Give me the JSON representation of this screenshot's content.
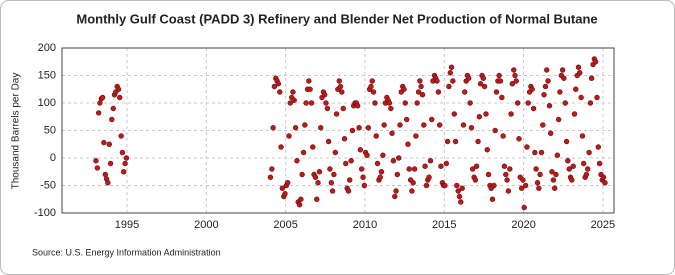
{
  "chart_data": {
    "type": "scatter",
    "title": "Monthly Gulf Coast (PADD 3) Refinery and Blender Net Production of Normal Butane",
    "y_label": "Thousand Barrels per Day",
    "source": "Source: U.S. Energy Information Administration",
    "color": "#b81c1c",
    "grid": true,
    "xlim": [
      1990.9,
      2025.7
    ],
    "xticks": [
      1995,
      2000,
      2005,
      2010,
      2015,
      2020,
      2025
    ],
    "ylim": [
      -100,
      200
    ],
    "yticks": [
      -100,
      -50,
      0,
      50,
      100,
      150,
      200
    ],
    "x": [
      1993.04,
      1993.13,
      1993.21,
      1993.29,
      1993.38,
      1993.46,
      1993.54,
      1993.63,
      1993.71,
      1993.79,
      1993.88,
      1993.96,
      1994.04,
      1994.13,
      1994.21,
      1994.29,
      1994.38,
      1994.46,
      1994.54,
      1994.63,
      1994.71,
      1994.79,
      1994.88,
      1994.96,
      2004.04,
      2004.13,
      2004.21,
      2004.29,
      2004.38,
      2004.46,
      2004.54,
      2004.63,
      2004.71,
      2004.79,
      2004.88,
      2004.96,
      2005.04,
      2005.13,
      2005.21,
      2005.29,
      2005.38,
      2005.46,
      2005.54,
      2005.63,
      2005.71,
      2005.79,
      2005.88,
      2005.96,
      2006.04,
      2006.13,
      2006.21,
      2006.29,
      2006.38,
      2006.46,
      2006.54,
      2006.63,
      2006.71,
      2006.79,
      2006.88,
      2006.96,
      2007.04,
      2007.13,
      2007.21,
      2007.29,
      2007.38,
      2007.46,
      2007.54,
      2007.63,
      2007.71,
      2007.79,
      2007.88,
      2007.96,
      2008.04,
      2008.13,
      2008.21,
      2008.29,
      2008.38,
      2008.46,
      2008.54,
      2008.63,
      2008.71,
      2008.79,
      2008.88,
      2008.96,
      2009.04,
      2009.13,
      2009.21,
      2009.29,
      2009.38,
      2009.46,
      2009.54,
      2009.63,
      2009.71,
      2009.79,
      2009.88,
      2009.96,
      2010.04,
      2010.13,
      2010.21,
      2010.29,
      2010.38,
      2010.46,
      2010.54,
      2010.63,
      2010.71,
      2010.79,
      2010.88,
      2010.96,
      2011.04,
      2011.13,
      2011.21,
      2011.29,
      2011.38,
      2011.46,
      2011.54,
      2011.63,
      2011.71,
      2011.79,
      2011.88,
      2011.96,
      2012.04,
      2012.13,
      2012.21,
      2012.29,
      2012.38,
      2012.46,
      2012.54,
      2012.63,
      2012.71,
      2012.79,
      2012.88,
      2012.96,
      2013.04,
      2013.13,
      2013.21,
      2013.29,
      2013.38,
      2013.46,
      2013.54,
      2013.63,
      2013.71,
      2013.79,
      2013.88,
      2013.96,
      2014.04,
      2014.13,
      2014.21,
      2014.29,
      2014.38,
      2014.46,
      2014.54,
      2014.63,
      2014.71,
      2014.79,
      2014.88,
      2014.96,
      2015.04,
      2015.13,
      2015.21,
      2015.29,
      2015.38,
      2015.46,
      2015.54,
      2015.63,
      2015.71,
      2015.79,
      2015.88,
      2015.96,
      2016.04,
      2016.13,
      2016.21,
      2016.29,
      2016.38,
      2016.46,
      2016.54,
      2016.63,
      2016.71,
      2016.79,
      2016.88,
      2016.96,
      2017.04,
      2017.13,
      2017.21,
      2017.29,
      2017.38,
      2017.46,
      2017.54,
      2017.63,
      2017.71,
      2017.79,
      2017.88,
      2017.96,
      2018.04,
      2018.13,
      2018.21,
      2018.29,
      2018.38,
      2018.46,
      2018.54,
      2018.63,
      2018.71,
      2018.79,
      2018.88,
      2018.96,
      2019.04,
      2019.13,
      2019.21,
      2019.29,
      2019.38,
      2019.46,
      2019.54,
      2019.63,
      2019.71,
      2019.79,
      2019.88,
      2019.96,
      2020.04,
      2020.13,
      2020.21,
      2020.29,
      2020.38,
      2020.46,
      2020.54,
      2020.63,
      2020.71,
      2020.79,
      2020.88,
      2020.96,
      2021.04,
      2021.13,
      2021.21,
      2021.29,
      2021.38,
      2021.46,
      2021.54,
      2021.63,
      2021.71,
      2021.79,
      2021.88,
      2021.96,
      2022.04,
      2022.13,
      2022.21,
      2022.29,
      2022.38,
      2022.46,
      2022.54,
      2022.63,
      2022.71,
      2022.79,
      2022.88,
      2022.96,
      2023.04,
      2023.13,
      2023.21,
      2023.29,
      2023.38,
      2023.46,
      2023.54,
      2023.63,
      2023.71,
      2023.79,
      2023.88,
      2023.96,
      2024.04,
      2024.13,
      2024.21,
      2024.29,
      2024.38,
      2024.46,
      2024.54,
      2024.63,
      2024.71,
      2024.79,
      2024.88,
      2024.96,
      2025.04,
      2025.13
    ],
    "values": [
      -5,
      -18,
      82,
      100,
      108,
      110,
      28,
      -30,
      -38,
      -45,
      25,
      -10,
      70,
      90,
      115,
      120,
      130,
      125,
      110,
      40,
      10,
      -25,
      -10,
      0,
      -35,
      -20,
      55,
      130,
      145,
      140,
      135,
      120,
      20,
      -55,
      -70,
      -65,
      -50,
      -45,
      40,
      100,
      110,
      120,
      105,
      55,
      -5,
      -80,
      -85,
      -75,
      -30,
      10,
      60,
      100,
      125,
      140,
      125,
      100,
      20,
      -30,
      -35,
      -75,
      -45,
      -25,
      55,
      110,
      120,
      115,
      100,
      90,
      30,
      -20,
      -45,
      -60,
      -30,
      10,
      80,
      125,
      140,
      130,
      120,
      90,
      35,
      -10,
      -55,
      -60,
      -40,
      -5,
      50,
      95,
      100,
      100,
      95,
      55,
      15,
      -20,
      -35,
      -50,
      10,
      5,
      55,
      125,
      130,
      140,
      120,
      100,
      40,
      -10,
      -40,
      -35,
      -25,
      5,
      60,
      100,
      110,
      105,
      100,
      90,
      45,
      -5,
      -70,
      -60,
      -30,
      0,
      60,
      120,
      130,
      125,
      100,
      70,
      25,
      -20,
      -40,
      -60,
      -45,
      -20,
      40,
      100,
      120,
      140,
      130,
      115,
      60,
      -15,
      -50,
      -40,
      -35,
      -5,
      70,
      140,
      150,
      145,
      140,
      120,
      60,
      -15,
      -45,
      -50,
      -50,
      -10,
      30,
      130,
      155,
      165,
      140,
      80,
      30,
      -50,
      -60,
      -70,
      -80,
      -55,
      60,
      120,
      140,
      150,
      145,
      100,
      55,
      -20,
      -35,
      -40,
      -15,
      30,
      75,
      135,
      150,
      145,
      130,
      80,
      15,
      -30,
      -50,
      -55,
      -75,
      -50,
      50,
      120,
      140,
      150,
      140,
      110,
      40,
      -15,
      -30,
      -40,
      -60,
      -20,
      80,
      135,
      160,
      150,
      140,
      100,
      35,
      -35,
      -55,
      -40,
      -90,
      -50,
      20,
      100,
      120,
      130,
      125,
      90,
      10,
      -20,
      -45,
      -55,
      -30,
      10,
      60,
      115,
      130,
      160,
      140,
      95,
      45,
      -25,
      -40,
      -55,
      -30,
      5,
      70,
      120,
      150,
      160,
      145,
      100,
      30,
      -5,
      -20,
      -35,
      -40,
      -15,
      80,
      125,
      150,
      165,
      155,
      110,
      40,
      -10,
      -35,
      -30,
      -20,
      10,
      100,
      145,
      170,
      180,
      175,
      110,
      20,
      -10,
      -30,
      -40,
      -35,
      -45
    ]
  }
}
